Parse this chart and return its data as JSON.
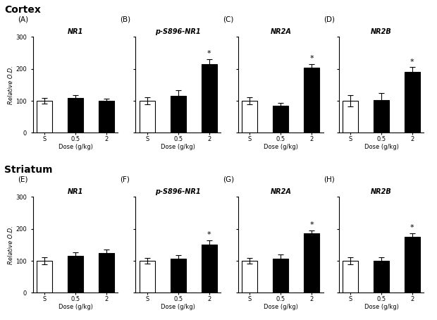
{
  "cortex_title": "Cortex",
  "striatum_title": "Striatum",
  "panels_top": [
    {
      "label": "(A)",
      "title": "NR1",
      "categories": [
        "S",
        "0.5",
        "2"
      ],
      "bar_colors": [
        "white",
        "black",
        "black"
      ],
      "values": [
        100,
        108,
        100
      ],
      "errors": [
        8,
        10,
        7
      ],
      "significance": [
        false,
        false,
        false
      ]
    },
    {
      "label": "(B)",
      "title": "p-S896-NR1",
      "categories": [
        "S",
        "0.5",
        "2"
      ],
      "bar_colors": [
        "white",
        "black",
        "black"
      ],
      "values": [
        100,
        115,
        215
      ],
      "errors": [
        10,
        18,
        15
      ],
      "significance": [
        false,
        false,
        true
      ]
    },
    {
      "label": "(C)",
      "title": "NR2A",
      "categories": [
        "S",
        "0.5",
        "2"
      ],
      "bar_colors": [
        "white",
        "black",
        "black"
      ],
      "values": [
        100,
        85,
        203
      ],
      "errors": [
        10,
        8,
        12
      ],
      "significance": [
        false,
        false,
        true
      ]
    },
    {
      "label": "(D)",
      "title": "NR2B",
      "categories": [
        "S",
        "0.5",
        "2"
      ],
      "bar_colors": [
        "white",
        "black",
        "black"
      ],
      "values": [
        100,
        102,
        190
      ],
      "errors": [
        18,
        22,
        15
      ],
      "significance": [
        false,
        false,
        true
      ]
    }
  ],
  "panels_bottom": [
    {
      "label": "(E)",
      "title": "NR1",
      "categories": [
        "S",
        "0.5",
        "2"
      ],
      "bar_colors": [
        "white",
        "black",
        "black"
      ],
      "values": [
        100,
        115,
        125
      ],
      "errors": [
        10,
        12,
        10
      ],
      "significance": [
        false,
        false,
        false
      ]
    },
    {
      "label": "(F)",
      "title": "p-S896-NR1",
      "categories": [
        "S",
        "0.5",
        "2"
      ],
      "bar_colors": [
        "white",
        "black",
        "black"
      ],
      "values": [
        100,
        107,
        150
      ],
      "errors": [
        8,
        10,
        15
      ],
      "significance": [
        false,
        false,
        true
      ]
    },
    {
      "label": "(G)",
      "title": "NR2A",
      "categories": [
        "S",
        "0.5",
        "2"
      ],
      "bar_colors": [
        "white",
        "black",
        "black"
      ],
      "values": [
        100,
        107,
        185
      ],
      "errors": [
        8,
        12,
        10
      ],
      "significance": [
        false,
        false,
        true
      ]
    },
    {
      "label": "(H)",
      "title": "NR2B",
      "categories": [
        "S",
        "0.5",
        "2"
      ],
      "bar_colors": [
        "white",
        "black",
        "black"
      ],
      "values": [
        100,
        100,
        175
      ],
      "errors": [
        10,
        10,
        12
      ],
      "significance": [
        false,
        false,
        true
      ]
    }
  ],
  "ylabel": "Relative O.D.",
  "xlabel": "Dose (g/kg)",
  "ylim": [
    0,
    300
  ],
  "yticks": [
    0,
    100,
    200,
    300
  ],
  "bar_width": 0.5,
  "edge_color": "black"
}
